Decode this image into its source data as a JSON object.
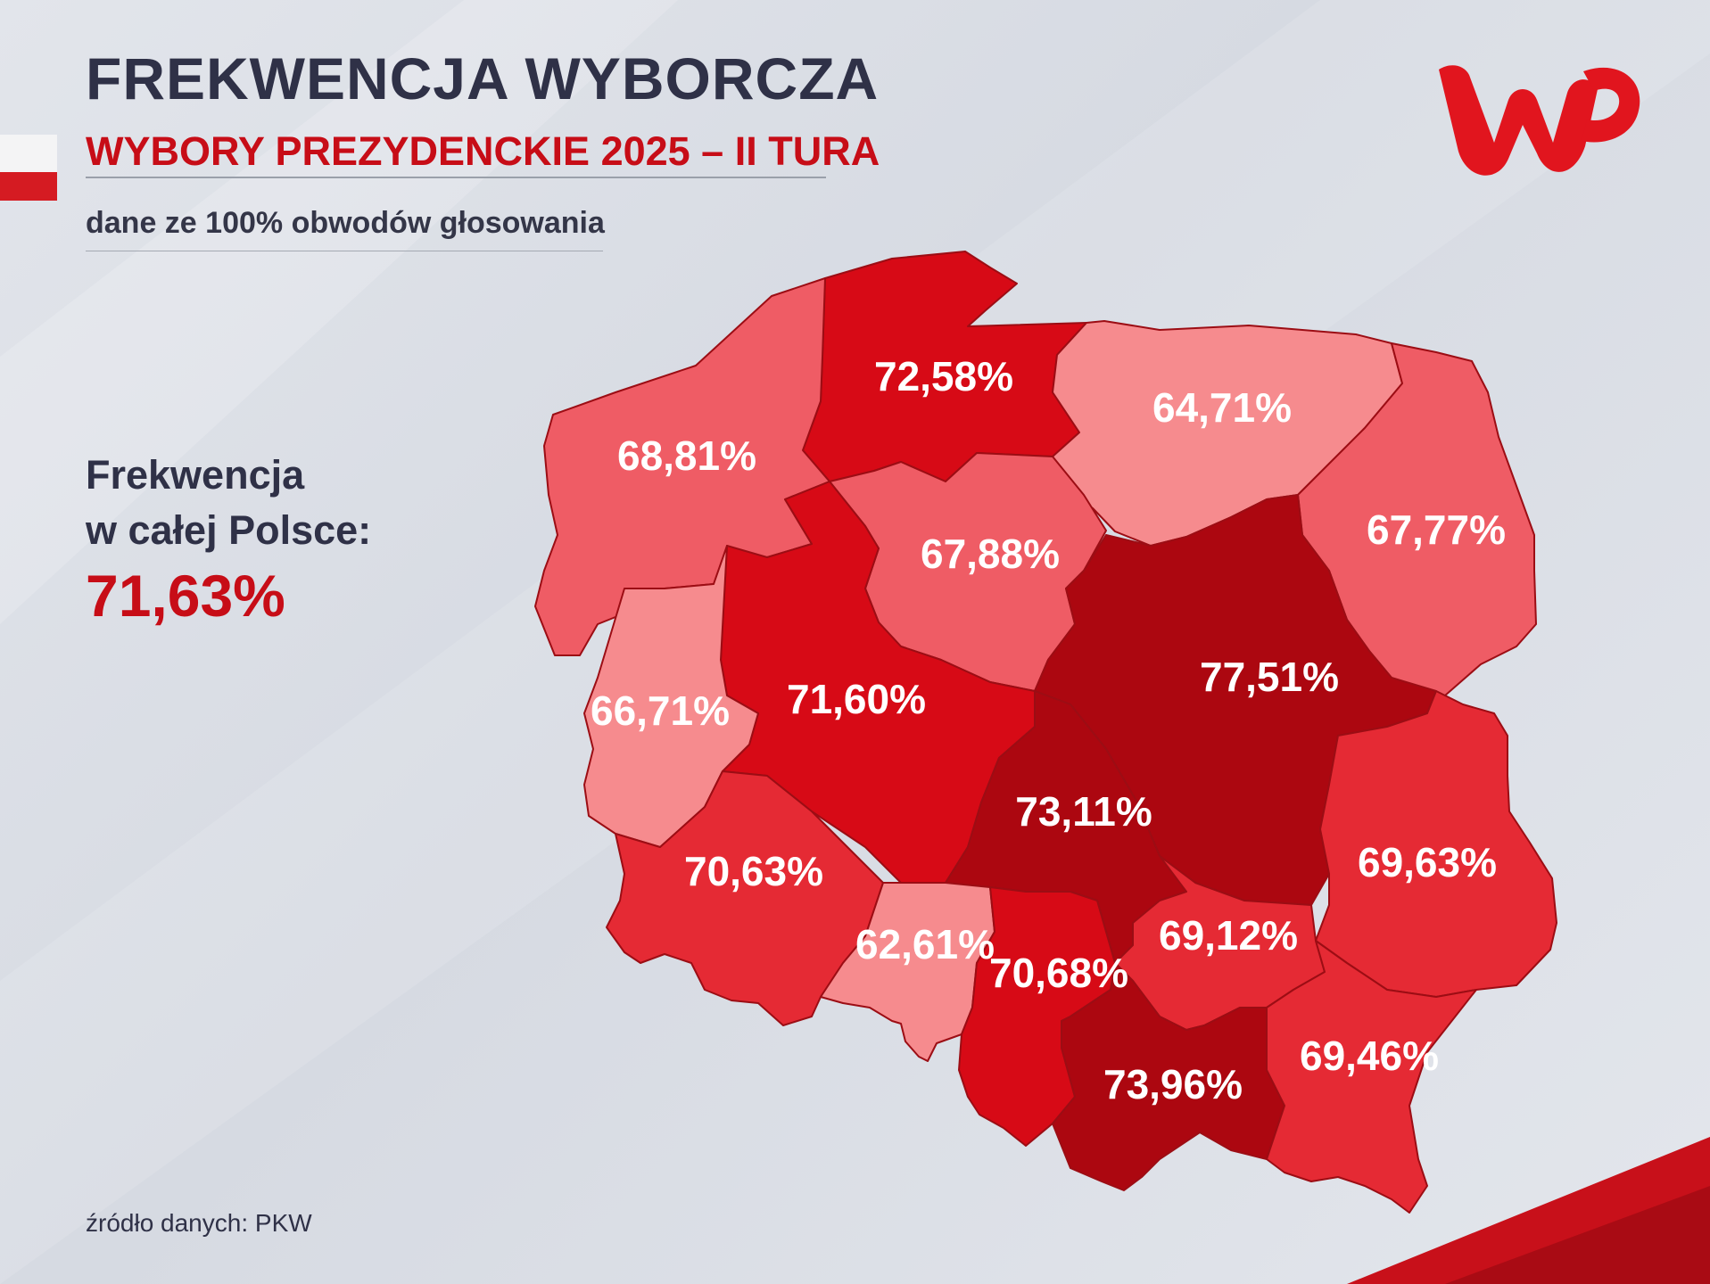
{
  "title": "FREKWENCJA WYBORCZA",
  "subtitle": "WYBORY PREZYDENCKIE 2025 – II TURA",
  "note": "dane ze 100% obwodów głosowania",
  "total": {
    "label_line1": "Frekwencja",
    "label_line2": "w całej Polsce:",
    "value": "71,63%"
  },
  "source": "źródło danych: PKW",
  "logo": {
    "text": "WP",
    "color": "#e1151e"
  },
  "map": {
    "unit": "%",
    "regions": [
      {
        "label": "72,58%",
        "value": 72.58,
        "color": "#d70a16"
      },
      {
        "label": "64,71%",
        "value": 64.71,
        "color": "#f68b8e"
      },
      {
        "label": "68,81%",
        "value": 68.81,
        "color": "#ef5c65"
      },
      {
        "label": "67,77%",
        "value": 67.77,
        "color": "#ef5c65"
      },
      {
        "label": "67,88%",
        "value": 67.88,
        "color": "#ef5c65"
      },
      {
        "label": "77,51%",
        "value": 77.51,
        "color": "#ac0710"
      },
      {
        "label": "71,60%",
        "value": 71.6,
        "color": "#d70a16"
      },
      {
        "label": "66,71%",
        "value": 66.71,
        "color": "#f68b8e"
      },
      {
        "label": "73,11%",
        "value": 73.11,
        "color": "#ac0710"
      },
      {
        "label": "69,63%",
        "value": 69.63,
        "color": "#e52a34"
      },
      {
        "label": "70,63%",
        "value": 70.63,
        "color": "#e52a34"
      },
      {
        "label": "62,61%",
        "value": 62.61,
        "color": "#f68b8e"
      },
      {
        "label": "70,68%",
        "value": 70.68,
        "color": "#d70a16"
      },
      {
        "label": "69,12%",
        "value": 69.12,
        "color": "#e52a34"
      },
      {
        "label": "73,96%",
        "value": 73.96,
        "color": "#ac0710"
      },
      {
        "label": "69,46%",
        "value": 69.46,
        "color": "#e52a34"
      }
    ]
  }
}
